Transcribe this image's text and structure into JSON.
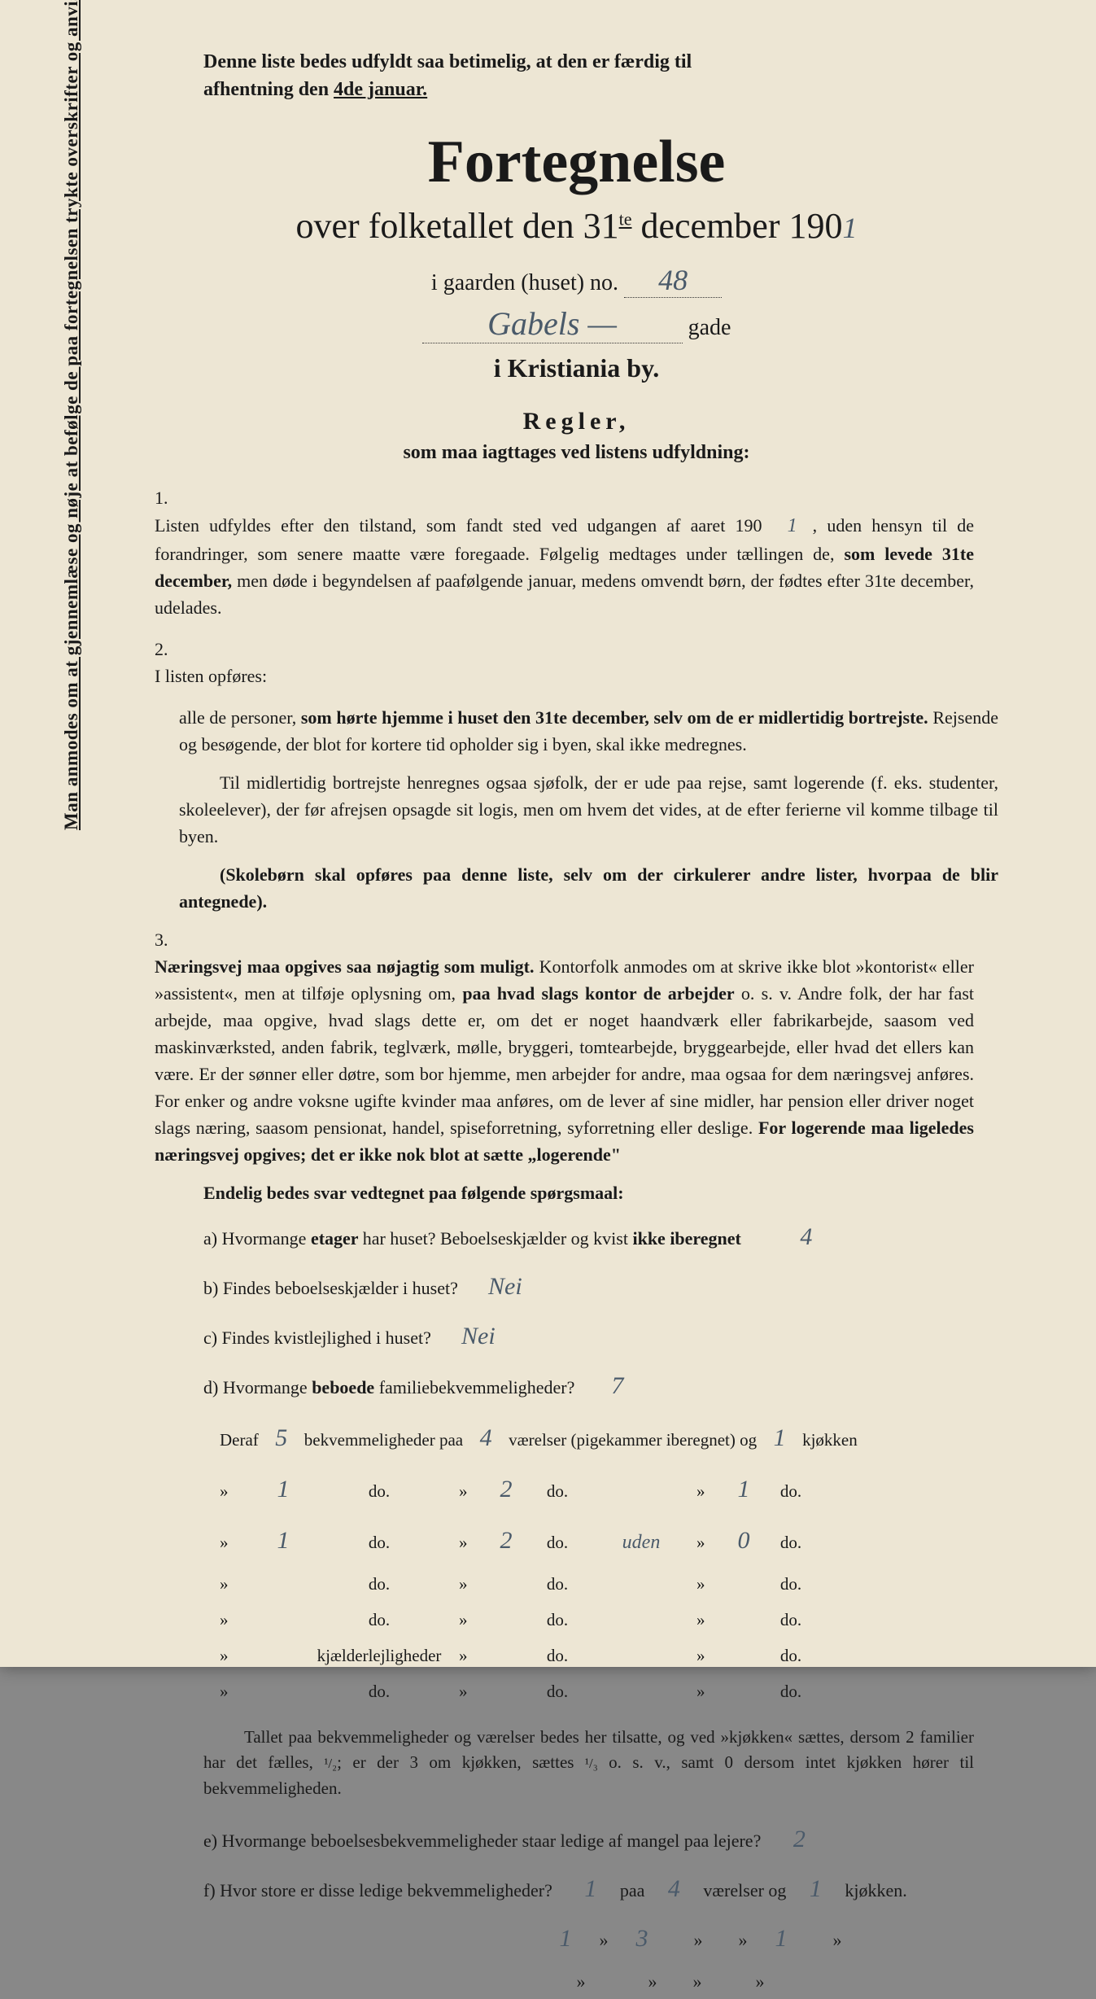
{
  "vertical_margin_text": "Man anmodes om at gjennemlæse og nøje at befølge de paa fortegnelsen trykte overskrifter og anvisninger.",
  "top_instruction_1": "Denne liste bedes udfyldt saa betimelig, at den er færdig til",
  "top_instruction_2": "afhentning den",
  "top_instruction_date": "4de januar.",
  "main_title": "Fortegnelse",
  "subtitle_prefix": "over folketallet den 31",
  "subtitle_sup": "te",
  "subtitle_suffix": " december 190",
  "year_hw": "1",
  "gaarden_label": "i gaarden (huset) no.",
  "gaarden_no_hw": "48",
  "street_hw": "Gabels —",
  "gade_label": "gade",
  "kristiania": "i Kristiania by.",
  "regler_title": "Regler,",
  "regler_sub": "som maa iagttages ved listens udfyldning:",
  "rule1_num": "1.",
  "rule1_text_a": "Listen udfyldes efter den tilstand, som fandt sted ved udgangen af aaret 190",
  "rule1_hw_year": "1",
  "rule1_text_b": ", uden hensyn til de forandringer, som senere maatte være foregaade. Følgelig medtages under tællingen de, ",
  "rule1_bold": "som levede 31te december,",
  "rule1_text_c": " men døde i begyndelsen af paafølgende januar, medens omvendt børn, der fødtes efter 31te december, udelades.",
  "rule2_num": "2.",
  "rule2_text_a": "I listen opføres:",
  "rule2_para1_a": "alle de personer, ",
  "rule2_para1_bold": "som hørte hjemme i huset den 31te december, selv om de er midlertidig bortrejste.",
  "rule2_para1_b": " Rejsende og besøgende, der blot for kortere tid opholder sig i byen, skal ikke medregnes.",
  "rule2_para2": "Til midlertidig bortrejste henregnes ogsaa sjøfolk, der er ude paa rejse, samt logerende (f. eks. studenter, skoleelever), der før afrejsen opsagde sit logis, men om hvem det vides, at de efter ferierne vil komme tilbage til byen.",
  "rule2_para3_bold": "(Skolebørn skal opføres paa denne liste, selv om der cirkulerer andre lister, hvorpaa de blir antegnede).",
  "rule3_num": "3.",
  "rule3_bold1": "Næringsvej maa opgives saa nøjagtig som muligt.",
  "rule3_text_a": " Kontorfolk anmodes om at skrive ikke blot »kontorist« eller »assistent«, men at tilføje oplysning om, ",
  "rule3_bold2": "paa hvad slags kontor de arbejder",
  "rule3_text_b": " o. s. v. Andre folk, der har fast arbejde, maa opgive, hvad slags dette er, om det er noget haandværk eller fabrikarbejde, saasom ved maskinværksted, anden fabrik, teglværk, mølle, bryggeri, tomtearbejde, bryggearbejde, eller hvad det ellers kan være. Er der sønner eller døtre, som bor hjemme, men arbejder for andre, maa ogsaa for dem næringsvej anføres. For enker og andre voksne ugifte kvinder maa anføres, om de lever af sine midler, har pension eller driver noget slags næring, saasom pensionat, handel, spiseforretning, syforretning eller deslige. ",
  "rule3_bold3": "For logerende maa ligeledes næringsvej opgives; det er ikke nok blot at sætte „logerende\"",
  "questions_header": "Endelig bedes svar vedtegnet paa følgende spørgsmaal:",
  "qa_label": "a) Hvormange",
  "qa_bold": " etager ",
  "qa_text2": "har huset?  Beboelseskjælder og kvist",
  "qa_bold2": " ikke iberegnet",
  "qa_hw": "4",
  "qb_text": "b) Findes beboelseskjælder i huset?",
  "qb_hw": "Nei",
  "qc_text": "c) Findes kvistlejlighed i huset?",
  "qc_hw": "Nei",
  "qd_label": "d) Hvormange",
  "qd_bold": " beboede ",
  "qd_text2": "familiebekvemmeligheder?",
  "qd_hw": "7",
  "table_line1_a": "Deraf",
  "table_line1_hw1": "5",
  "table_line1_b": "bekvemmeligheder paa",
  "table_line1_hw2": "4",
  "table_line1_c": "værelser (pigekammer iberegnet) og",
  "table_line1_hw3": "1",
  "table_line1_d": "kjøkken",
  "table_rows": [
    {
      "c1": "1",
      "c2": "do.",
      "c3": "2",
      "c4": "do.",
      "c5": "",
      "c6": "1",
      "c7": "do."
    },
    {
      "c1": "1",
      "c2": "do.",
      "c3": "2",
      "c4": "do.",
      "c5": "uden",
      "c6": "0",
      "c7": "do."
    },
    {
      "c1": "",
      "c2": "do.",
      "c3": "",
      "c4": "do.",
      "c5": "",
      "c6": "",
      "c7": "do."
    },
    {
      "c1": "",
      "c2": "do.",
      "c3": "",
      "c4": "do.",
      "c5": "",
      "c6": "",
      "c7": "do."
    },
    {
      "c1": "",
      "c2": "kjælderlejligheder",
      "c3": "",
      "c4": "do.",
      "c5": "",
      "c6": "",
      "c7": "do."
    },
    {
      "c1": "",
      "c2": "do.",
      "c3": "",
      "c4": "do.",
      "c5": "",
      "c6": "",
      "c7": "do."
    }
  ],
  "footer_note_a": "Tallet paa bekvemmeligheder og værelser bedes her tilsatte, og ved »kjøkken« sættes, dersom 2 familier har det fælles, ",
  "footer_frac1": "¹/₂",
  "footer_note_b": "; er der 3 om kjøkken, sættes ",
  "footer_frac2": "¹/₃",
  "footer_note_c": " o. s. v., samt 0 dersom intet kjøkken hører til bekvemmeligheden.",
  "qe_text": "e) Hvormange beboelsesbekvemmeligheder staar ledige af mangel paa lejere?",
  "qe_hw": "2",
  "qf_text": "f) Hvor store er disse ledige bekvemmeligheder?",
  "qf_hw1": "1",
  "qf_mid1": "paa",
  "qf_hw2": "4",
  "qf_mid2": "værelser og",
  "qf_hw3": "1",
  "qf_end": "kjøkken.",
  "qf2_hw1": "1",
  "qf2_hw2": "3",
  "qf2_hw3": "1",
  "colors": {
    "paper": "#ede6d4",
    "ink": "#1a1a1a",
    "handwriting": "#4a5a6a"
  }
}
